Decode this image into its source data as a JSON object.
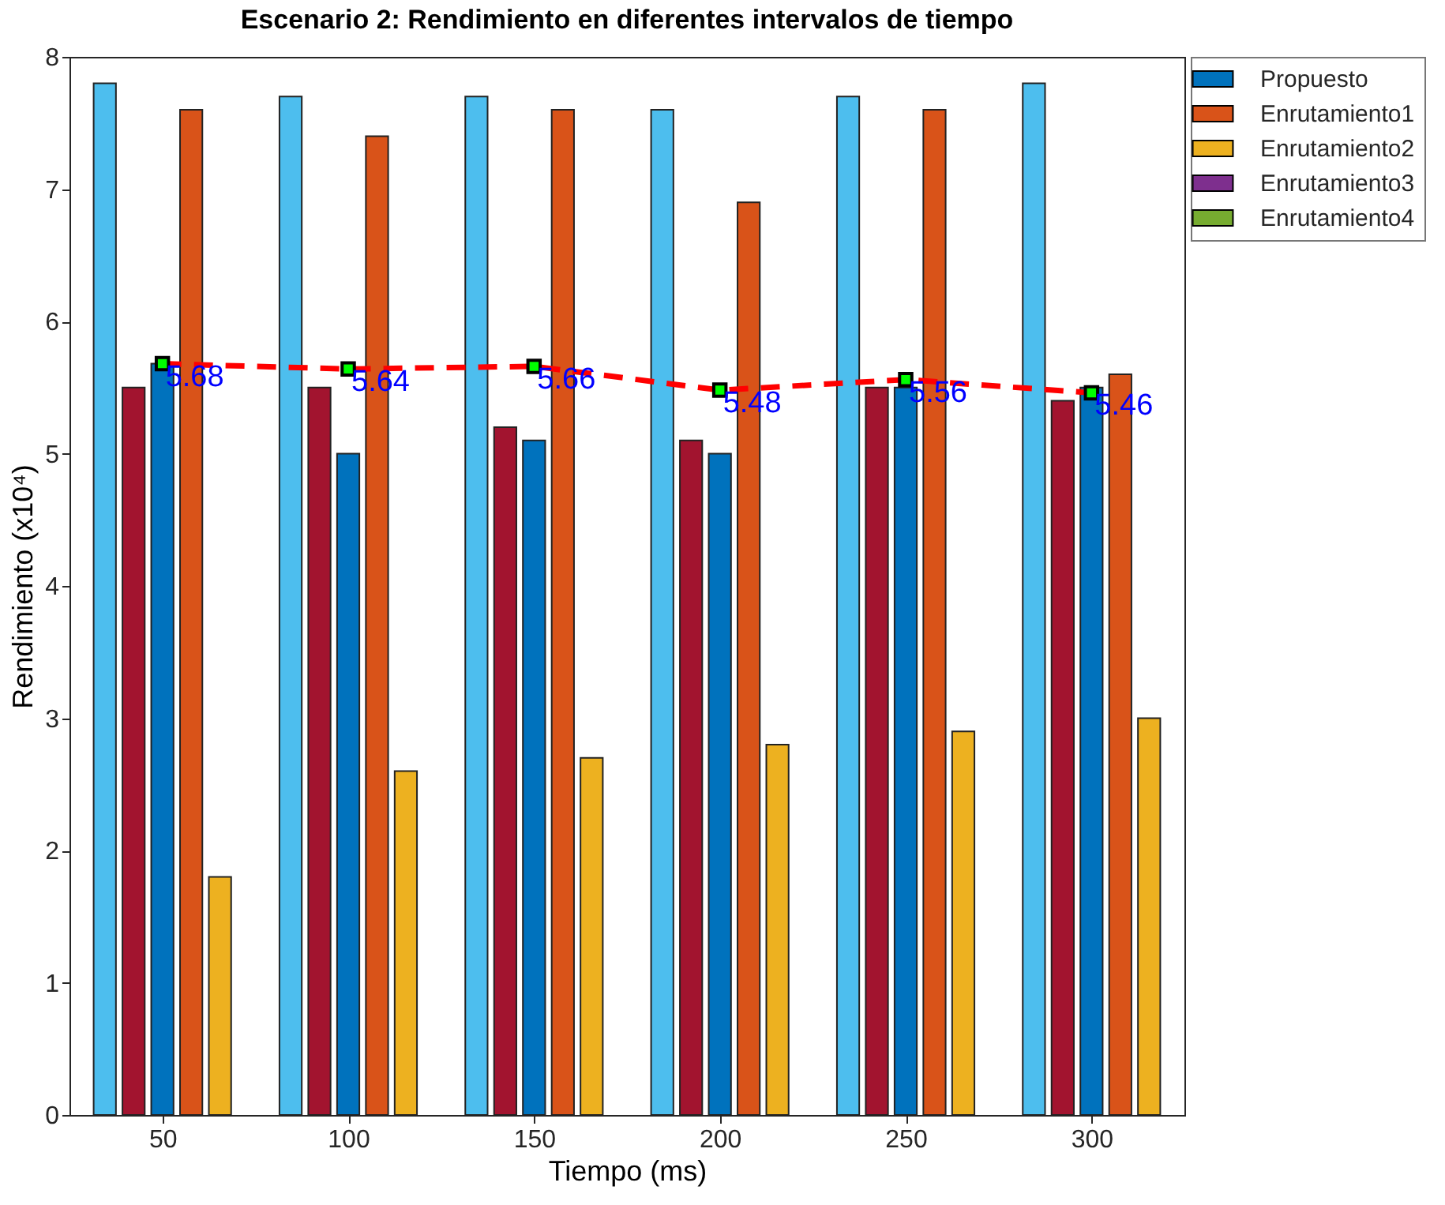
{
  "chart_data": {
    "type": "bar",
    "title": "Escenario 2: Rendimiento en diferentes intervalos de tiempo",
    "xlabel": "Tiempo (ms)",
    "ylabel": "Rendimiento (x10⁴)",
    "categories": [
      "50",
      "100",
      "150",
      "200",
      "250",
      "300"
    ],
    "series": [
      {
        "color": "#4dbeee",
        "values": [
          7.8,
          7.7,
          7.7,
          7.6,
          7.7,
          7.8
        ]
      },
      {
        "color": "#a2142f",
        "values": [
          5.5,
          5.5,
          5.2,
          5.1,
          5.5,
          5.4
        ]
      },
      {
        "name": "Propuesto",
        "color": "#0072bd",
        "values": [
          5.68,
          5.0,
          5.1,
          5.0,
          5.5,
          5.5
        ]
      },
      {
        "name": "Enrutamiento1",
        "color": "#d95319",
        "values": [
          7.6,
          7.4,
          7.6,
          6.9,
          7.6,
          5.6
        ]
      },
      {
        "name": "Enrutamiento2",
        "color": "#edb120",
        "values": [
          1.8,
          2.6,
          2.7,
          2.8,
          2.9,
          3.0
        ]
      },
      {
        "name": "Enrutamiento3",
        "color": "#7e2f8e",
        "values": [
          null,
          null,
          null,
          null,
          null,
          null
        ]
      },
      {
        "name": "Enrutamiento4",
        "color": "#77ac30",
        "values": [
          null,
          null,
          null,
          null,
          null,
          null
        ]
      },
      {
        "type": "line",
        "color": "#ff0000",
        "line_style": "dashed",
        "marker": "square",
        "values": [
          5.68,
          5.64,
          5.66,
          5.48,
          5.56,
          5.46
        ],
        "value_labels": [
          "5.68",
          "5.64",
          "5.66",
          "5.48",
          "5.56",
          "5.46"
        ]
      }
    ],
    "ylim": [
      0,
      8
    ],
    "yticks": [
      0,
      1,
      2,
      3,
      4,
      5,
      6,
      7,
      8
    ],
    "grid": false,
    "legend": "right"
  }
}
